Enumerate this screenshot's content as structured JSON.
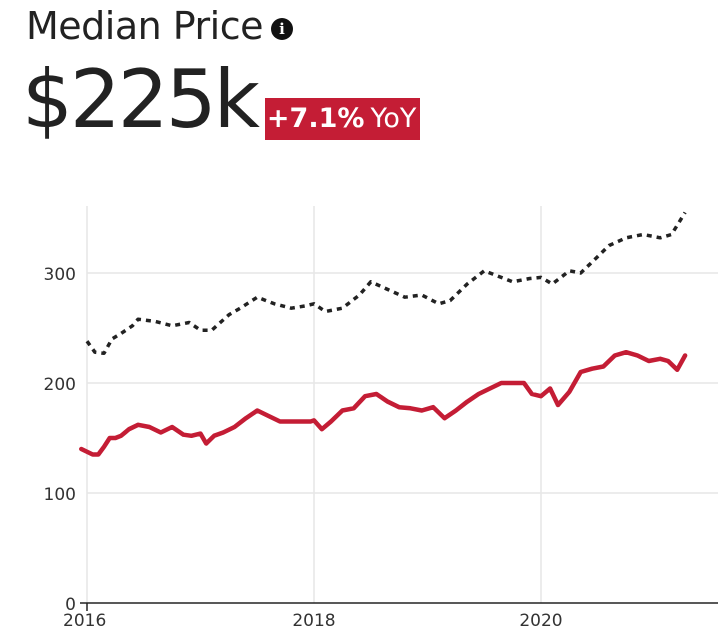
{
  "header": {
    "title": "Median Price",
    "info_icon": "info-icon",
    "value": "$225k",
    "change": "+7.1%",
    "period": "YoY"
  },
  "colors": {
    "badge": "#c41d35",
    "series_solid": "#c41d35",
    "series_dotted": "#222222",
    "grid": "#e6e6e6"
  },
  "chart_data": {
    "type": "line",
    "title": "",
    "xlabel": "",
    "ylabel": "",
    "ylim": [
      0,
      360
    ],
    "xlim": [
      2015.97,
      2021.5
    ],
    "xticks": [
      2016,
      2018,
      2020
    ],
    "xtick_labels": [
      "2016",
      "2018",
      "2020"
    ],
    "yticks": [
      0,
      100,
      200,
      300
    ],
    "ytick_labels": [
      "0",
      "100",
      "200",
      "300"
    ],
    "grid": true,
    "legend": "none",
    "series": [
      {
        "style": "dotted",
        "color": "#222222",
        "x": [
          2016.0,
          2016.07,
          2016.15,
          2016.22,
          2016.3,
          2016.4,
          2016.45,
          2016.6,
          2016.75,
          2016.9,
          2017.0,
          2017.1,
          2017.25,
          2017.35,
          2017.5,
          2017.65,
          2017.8,
          2017.92,
          2018.0,
          2018.1,
          2018.25,
          2018.4,
          2018.5,
          2018.65,
          2018.8,
          2018.95,
          2019.1,
          2019.2,
          2019.35,
          2019.5,
          2019.6,
          2019.75,
          2019.9,
          2020.0,
          2020.1,
          2020.25,
          2020.35,
          2020.5,
          2020.6,
          2020.75,
          2020.9,
          2021.05,
          2021.15,
          2021.27
        ],
        "y": [
          238,
          228,
          227,
          240,
          245,
          252,
          258,
          256,
          252,
          255,
          248,
          248,
          262,
          268,
          278,
          272,
          268,
          270,
          272,
          265,
          268,
          280,
          292,
          285,
          278,
          280,
          272,
          275,
          290,
          302,
          298,
          292,
          295,
          296,
          290,
          302,
          300,
          315,
          325,
          332,
          335,
          332,
          335,
          355
        ]
      },
      {
        "style": "solid",
        "color": "#c41d35",
        "x": [
          2015.95,
          2016.05,
          2016.1,
          2016.15,
          2016.2,
          2016.25,
          2016.3,
          2016.37,
          2016.45,
          2016.55,
          2016.65,
          2016.75,
          2016.85,
          2016.92,
          2017.0,
          2017.05,
          2017.12,
          2017.2,
          2017.3,
          2017.4,
          2017.5,
          2017.6,
          2017.7,
          2017.8,
          2017.9,
          2017.97,
          2018.0,
          2018.07,
          2018.15,
          2018.25,
          2018.35,
          2018.45,
          2018.55,
          2018.65,
          2018.75,
          2018.85,
          2018.95,
          2019.05,
          2019.15,
          2019.25,
          2019.35,
          2019.45,
          2019.55,
          2019.65,
          2019.75,
          2019.85,
          2019.92,
          2020.0,
          2020.08,
          2020.15,
          2020.25,
          2020.35,
          2020.45,
          2020.55,
          2020.65,
          2020.75,
          2020.85,
          2020.95,
          2021.05,
          2021.12,
          2021.2,
          2021.27
        ],
        "y": [
          140,
          135,
          135,
          142,
          150,
          150,
          152,
          158,
          162,
          160,
          155,
          160,
          153,
          152,
          154,
          145,
          152,
          155,
          160,
          168,
          175,
          170,
          165,
          165,
          165,
          165,
          166,
          158,
          165,
          175,
          177,
          188,
          190,
          183,
          178,
          177,
          175,
          178,
          168,
          175,
          183,
          190,
          195,
          200,
          200,
          200,
          190,
          188,
          195,
          180,
          192,
          210,
          213,
          215,
          225,
          228,
          225,
          220,
          222,
          220,
          212,
          225
        ]
      }
    ]
  }
}
